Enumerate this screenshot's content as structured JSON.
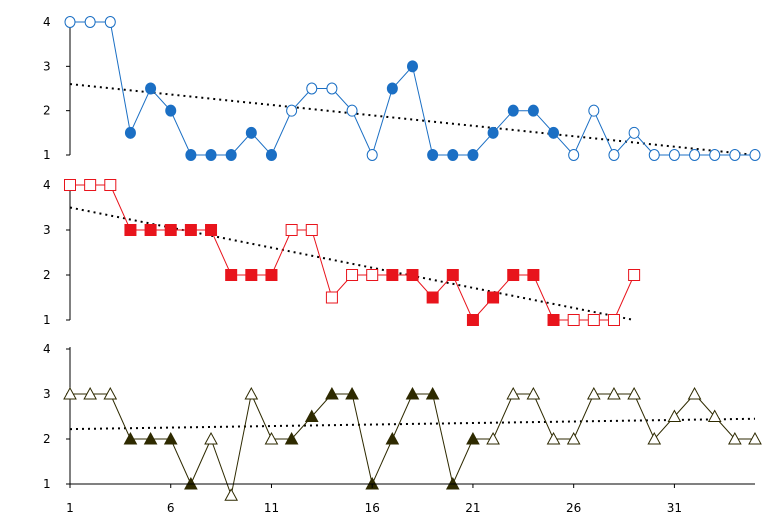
{
  "chart_data": [
    {
      "type": "line",
      "color": "#1b6fc4",
      "marker": "circle",
      "y_ticks": [
        "1",
        "2",
        "3",
        "4"
      ],
      "ylim": [
        1,
        4
      ],
      "grid": false,
      "x": [
        1,
        2,
        3,
        4,
        5,
        6,
        7,
        8,
        9,
        10,
        11,
        12,
        13,
        14,
        15,
        16,
        17,
        18,
        19,
        20,
        21,
        22,
        23,
        24,
        25,
        26,
        27,
        28,
        29,
        30,
        31,
        32,
        33,
        34,
        35
      ],
      "values": [
        4,
        4,
        4,
        1.5,
        2.5,
        2,
        1,
        1,
        1,
        1.5,
        1,
        2,
        2.5,
        2.5,
        2,
        1,
        2.5,
        3,
        1,
        1,
        1,
        1.5,
        2,
        2,
        1.5,
        1,
        2,
        1,
        1.5,
        1,
        1,
        1,
        1,
        1,
        1
      ],
      "filled": [
        false,
        false,
        false,
        true,
        true,
        true,
        true,
        true,
        true,
        true,
        true,
        false,
        false,
        false,
        false,
        false,
        true,
        true,
        true,
        true,
        true,
        true,
        true,
        true,
        true,
        false,
        false,
        false,
        false,
        false,
        false,
        false,
        false,
        false,
        false
      ],
      "trend": [
        2.6,
        1.0
      ]
    },
    {
      "type": "line",
      "color": "#e8141c",
      "marker": "square",
      "y_ticks": [
        "1",
        "2",
        "3",
        "4"
      ],
      "ylim": [
        1,
        4
      ],
      "grid": false,
      "x": [
        1,
        2,
        3,
        4,
        5,
        6,
        7,
        8,
        9,
        10,
        11,
        12,
        13,
        14,
        15,
        16,
        17,
        18,
        19,
        20,
        21,
        22,
        23,
        24,
        25,
        26,
        27,
        28,
        29
      ],
      "values": [
        4,
        4,
        4,
        3,
        3,
        3,
        3,
        3,
        2,
        2,
        2,
        3,
        3,
        1.5,
        2,
        2,
        2,
        2,
        1.5,
        2,
        1,
        1.5,
        2,
        2,
        1,
        1,
        1,
        1,
        2
      ],
      "filled": [
        false,
        false,
        false,
        true,
        true,
        true,
        true,
        true,
        true,
        true,
        true,
        false,
        false,
        false,
        false,
        false,
        true,
        true,
        true,
        true,
        true,
        true,
        true,
        true,
        true,
        false,
        false,
        false,
        false
      ],
      "trend": [
        3.5,
        1.0
      ]
    },
    {
      "type": "line",
      "color": "#2e2a00",
      "marker": "triangle",
      "y_ticks": [
        "1",
        "2",
        "3",
        "4"
      ],
      "ylim": [
        1,
        4
      ],
      "grid": false,
      "x": [
        1,
        2,
        3,
        4,
        5,
        6,
        7,
        8,
        9,
        10,
        11,
        12,
        13,
        14,
        15,
        16,
        17,
        18,
        19,
        20,
        21,
        22,
        23,
        24,
        25,
        26,
        27,
        28,
        29,
        30,
        31,
        32,
        33,
        34,
        35
      ],
      "values": [
        3,
        3,
        3,
        2,
        2,
        2,
        1,
        2,
        0.75,
        3,
        2,
        2,
        2.5,
        3,
        3,
        1,
        2,
        3,
        3,
        1,
        2,
        2,
        3,
        3,
        2,
        2,
        3,
        3,
        3,
        2,
        2.5,
        3,
        2.5,
        2,
        2
      ],
      "filled": [
        false,
        false,
        false,
        true,
        true,
        true,
        true,
        false,
        false,
        false,
        false,
        true,
        true,
        true,
        true,
        true,
        true,
        true,
        true,
        true,
        true,
        false,
        false,
        false,
        false,
        false,
        false,
        false,
        false,
        false,
        false,
        false,
        false,
        false,
        false
      ],
      "trend": [
        2.22,
        2.45
      ]
    }
  ],
  "x_axis": {
    "ticks": [
      "1",
      "6",
      "11",
      "16",
      "21",
      "26",
      "31"
    ],
    "xlim": [
      1,
      35
    ]
  }
}
